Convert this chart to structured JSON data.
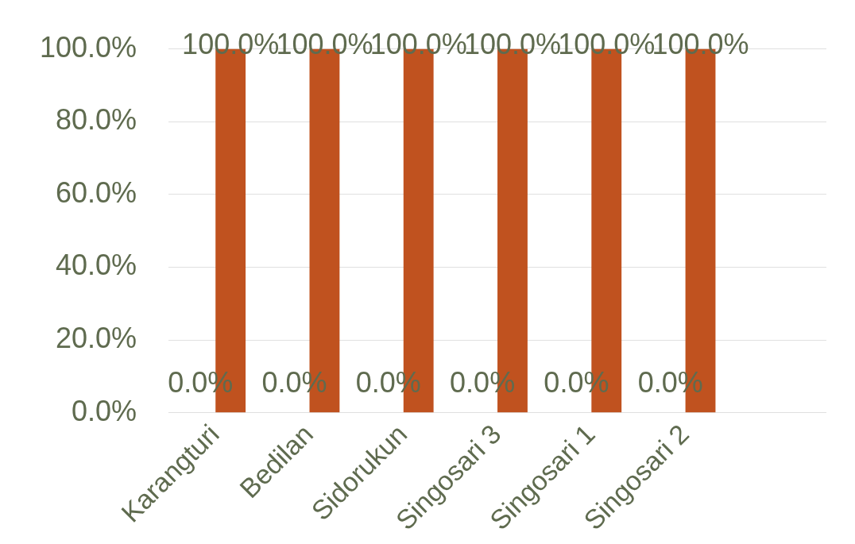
{
  "chart_data": {
    "type": "bar",
    "categories": [
      "Karangturi",
      "Bedilan",
      "Sidorukun",
      "Singosari 3",
      "Singosari 1",
      "Singosari 2",
      null
    ],
    "series": [
      {
        "color": "#4472c4",
        "values": [
          0,
          0,
          0,
          0,
          0,
          0,
          null
        ],
        "value_labels": [
          "0.0%",
          "0.0%",
          "0.0%",
          "0.0%",
          "0.0%",
          "0.0%",
          null
        ]
      },
      {
        "color": "#c0521f",
        "values": [
          100,
          100,
          100,
          100,
          100,
          100,
          null
        ],
        "value_labels": [
          "100.0%",
          "100.0%",
          "100.0%",
          "100.0%",
          "100.0%",
          "100.0%",
          null
        ]
      }
    ],
    "ylim": [
      0,
      100
    ],
    "yticks": [
      {
        "value": 0,
        "label": "0.0%"
      },
      {
        "value": 20,
        "label": "20.0%"
      },
      {
        "value": 40,
        "label": "40.0%"
      },
      {
        "value": 60,
        "label": "60.0%"
      },
      {
        "value": 80,
        "label": "80.0%"
      },
      {
        "value": 100,
        "label": "100.0%"
      }
    ],
    "grid": "y",
    "legend": false
  }
}
